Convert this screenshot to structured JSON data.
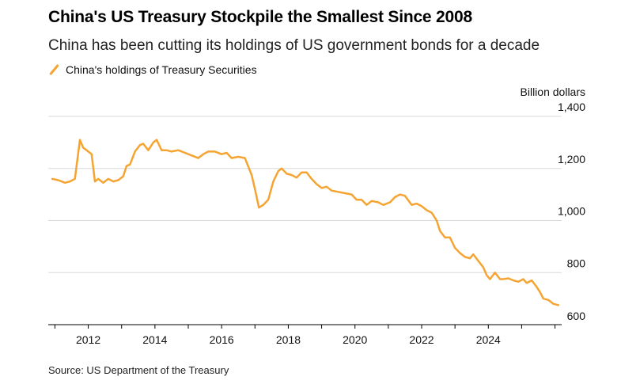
{
  "header": {
    "title": "China's US Treasury Stockpile the Smallest Since 2008",
    "subtitle": "China has been cutting its holdings of US government bonds for a decade"
  },
  "legend": {
    "label": "China's holdings of Treasury Securities",
    "color": "#f5a431"
  },
  "footer": {
    "source": "Source: US Department of the Treasury"
  },
  "chart_data": {
    "type": "line",
    "title": "China's US Treasury Stockpile the Smallest Since 2008",
    "ylabel": "Billion dollars",
    "xlabel": "",
    "xlim": [
      2010.8,
      2026.2
    ],
    "ylim": [
      600,
      1400
    ],
    "yticks": [
      600,
      800,
      1000,
      1200,
      1400
    ],
    "ytick_labels": [
      "600",
      "800",
      "1,000",
      "1,200",
      "1,400"
    ],
    "xticks": [
      2012,
      2014,
      2016,
      2018,
      2020,
      2022,
      2024
    ],
    "xtick_labels": [
      "2012",
      "2014",
      "2016",
      "2018",
      "2020",
      "2022",
      "2024"
    ],
    "grid": true,
    "series": [
      {
        "name": "China's holdings of Treasury Securities",
        "color": "#f5a431",
        "points": [
          [
            2010.92,
            1160
          ],
          [
            2011.1,
            1155
          ],
          [
            2011.3,
            1145
          ],
          [
            2011.45,
            1150
          ],
          [
            2011.6,
            1160
          ],
          [
            2011.75,
            1310
          ],
          [
            2011.85,
            1280
          ],
          [
            2012.0,
            1265
          ],
          [
            2012.1,
            1255
          ],
          [
            2012.2,
            1150
          ],
          [
            2012.3,
            1160
          ],
          [
            2012.45,
            1145
          ],
          [
            2012.6,
            1160
          ],
          [
            2012.75,
            1150
          ],
          [
            2012.9,
            1155
          ],
          [
            2013.05,
            1170
          ],
          [
            2013.15,
            1210
          ],
          [
            2013.25,
            1215
          ],
          [
            2013.4,
            1265
          ],
          [
            2013.55,
            1290
          ],
          [
            2013.65,
            1295
          ],
          [
            2013.8,
            1270
          ],
          [
            2013.95,
            1300
          ],
          [
            2014.05,
            1310
          ],
          [
            2014.2,
            1270
          ],
          [
            2014.35,
            1270
          ],
          [
            2014.5,
            1265
          ],
          [
            2014.7,
            1270
          ],
          [
            2014.9,
            1260
          ],
          [
            2015.1,
            1250
          ],
          [
            2015.3,
            1240
          ],
          [
            2015.45,
            1255
          ],
          [
            2015.6,
            1265
          ],
          [
            2015.8,
            1265
          ],
          [
            2016.0,
            1255
          ],
          [
            2016.15,
            1260
          ],
          [
            2016.3,
            1240
          ],
          [
            2016.5,
            1245
          ],
          [
            2016.7,
            1240
          ],
          [
            2016.9,
            1175
          ],
          [
            2017.0,
            1120
          ],
          [
            2017.12,
            1050
          ],
          [
            2017.25,
            1060
          ],
          [
            2017.4,
            1080
          ],
          [
            2017.55,
            1150
          ],
          [
            2017.7,
            1190
          ],
          [
            2017.8,
            1200
          ],
          [
            2017.95,
            1180
          ],
          [
            2018.1,
            1175
          ],
          [
            2018.25,
            1165
          ],
          [
            2018.4,
            1185
          ],
          [
            2018.55,
            1185
          ],
          [
            2018.7,
            1160
          ],
          [
            2018.85,
            1140
          ],
          [
            2019.0,
            1125
          ],
          [
            2019.15,
            1130
          ],
          [
            2019.3,
            1115
          ],
          [
            2019.5,
            1110
          ],
          [
            2019.7,
            1105
          ],
          [
            2019.9,
            1100
          ],
          [
            2020.05,
            1080
          ],
          [
            2020.2,
            1080
          ],
          [
            2020.35,
            1060
          ],
          [
            2020.5,
            1075
          ],
          [
            2020.7,
            1070
          ],
          [
            2020.85,
            1060
          ],
          [
            2021.05,
            1070
          ],
          [
            2021.2,
            1090
          ],
          [
            2021.35,
            1100
          ],
          [
            2021.5,
            1095
          ],
          [
            2021.7,
            1060
          ],
          [
            2021.85,
            1065
          ],
          [
            2022.0,
            1055
          ],
          [
            2022.15,
            1040
          ],
          [
            2022.3,
            1030
          ],
          [
            2022.45,
            1000
          ],
          [
            2022.55,
            960
          ],
          [
            2022.7,
            935
          ],
          [
            2022.85,
            935
          ],
          [
            2023.0,
            895
          ],
          [
            2023.15,
            875
          ],
          [
            2023.3,
            860
          ],
          [
            2023.45,
            855
          ],
          [
            2023.55,
            870
          ],
          [
            2023.7,
            845
          ],
          [
            2023.85,
            820
          ],
          [
            2023.95,
            790
          ],
          [
            2024.05,
            775
          ],
          [
            2024.2,
            800
          ],
          [
            2024.35,
            775
          ],
          [
            2024.45,
            775
          ],
          [
            2024.6,
            778
          ],
          [
            2024.75,
            770
          ],
          [
            2024.9,
            765
          ],
          [
            2025.05,
            775
          ],
          [
            2025.15,
            760
          ],
          [
            2025.3,
            770
          ],
          [
            2025.45,
            745
          ],
          [
            2025.55,
            725
          ],
          [
            2025.65,
            700
          ],
          [
            2025.8,
            695
          ],
          [
            2025.95,
            680
          ],
          [
            2026.1,
            675
          ]
        ]
      }
    ]
  }
}
